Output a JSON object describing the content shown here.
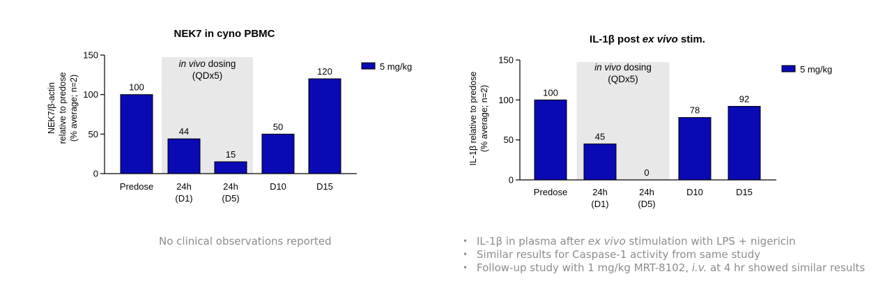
{
  "chart_data": [
    {
      "type": "bar",
      "title": "NEK7 in cyno PBMC",
      "ylabel_lines": [
        "NEK7/β-actin",
        "relative to predose",
        "(% average; n=2)"
      ],
      "categories": [
        [
          "Predose"
        ],
        [
          "24h",
          "(D1)"
        ],
        [
          "24h",
          "(D5)"
        ],
        [
          "D10"
        ],
        [
          "D15"
        ]
      ],
      "series": [
        {
          "name": "5 mg/kg",
          "values": [
            100,
            44,
            15,
            50,
            120
          ]
        }
      ],
      "data_labels": [
        "100",
        "44",
        "15",
        "50",
        "120"
      ],
      "yticks": [
        0,
        50,
        100,
        150
      ],
      "ylim": [
        0,
        150
      ],
      "shaded_region": {
        "categories": [
          "24h (D1)",
          "24h (D5)"
        ],
        "label_italic": "in vivo",
        "label_rest": " dosing",
        "label_line2": "(QDx5)"
      },
      "bar_color": "#0a0ab4",
      "shade_color": "#e8e8e8",
      "legend_position": "top-right"
    },
    {
      "type": "bar",
      "title_parts": [
        {
          "text": "IL-1β post ",
          "italic": false
        },
        {
          "text": "ex vivo",
          "italic": true
        },
        {
          "text": " stim.",
          "italic": false
        }
      ],
      "ylabel_lines": [
        "IL-1β relative to predose",
        "(% average; n=2)"
      ],
      "categories": [
        [
          "Predose"
        ],
        [
          "24h",
          "(D1)"
        ],
        [
          "24h",
          "(D5)"
        ],
        [
          "D10"
        ],
        [
          "D15"
        ]
      ],
      "series": [
        {
          "name": "5 mg/kg",
          "values": [
            100,
            45,
            0,
            78,
            92
          ]
        }
      ],
      "data_labels": [
        "100",
        "45",
        "0",
        "78",
        "92"
      ],
      "yticks": [
        0,
        50,
        100,
        150
      ],
      "ylim": [
        0,
        150
      ],
      "shaded_region": {
        "categories": [
          "24h (D1)",
          "24h (D5)"
        ],
        "label_italic": "in vivo",
        "label_rest": " dosing",
        "label_line2": "(QDx5)"
      },
      "bar_color": "#0a0ab4",
      "shade_color": "#e8e8e8",
      "legend_position": "top-right"
    }
  ],
  "left_note": "No clinical observations reported",
  "bullets": [
    [
      {
        "text": "IL-1β in plasma after ",
        "italic": false
      },
      {
        "text": "ex vivo",
        "italic": true
      },
      {
        "text": " stimulation with LPS + nigericin",
        "italic": false
      }
    ],
    [
      {
        "text": "Similar results for Caspase-1 activity from same study",
        "italic": false
      }
    ],
    [
      {
        "text": "Follow-up study with 1 mg/kg MRT-8102, ",
        "italic": false
      },
      {
        "text": "i.v.",
        "italic": true
      },
      {
        "text": " at 4 hr showed similar results",
        "italic": false
      }
    ]
  ]
}
